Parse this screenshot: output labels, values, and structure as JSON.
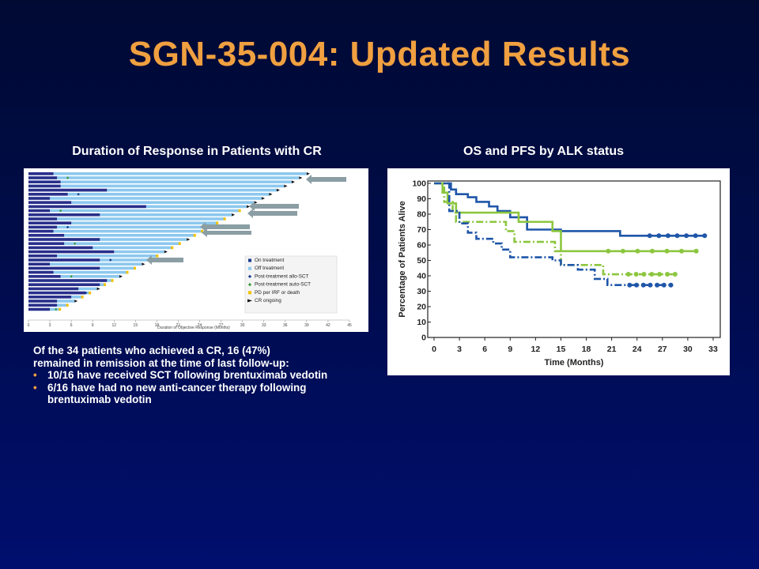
{
  "slide": {
    "title": "SGN-35-004: Updated Results",
    "left_heading": "Duration of Response in Patients with CR",
    "right_heading": "OS and PFS by ALK status",
    "summary": {
      "intro_line1": "Of the 34 patients who achieved a CR, 16 (47%)",
      "intro_line2": "remained in remission at the time of last follow-up:",
      "bullets": [
        {
          "line1": "10/16 have received SCT following brentuximab vedotin",
          "line2": ""
        },
        {
          "line1": "6/16 have had no new anti-cancer therapy following",
          "line2": "brentuximab vedotin"
        }
      ]
    },
    "accent_color": "#f0a040"
  },
  "swimmer": {
    "xlabel": "Duration of Objective Response (Months)",
    "x_ticks": [
      "0",
      "3",
      "6",
      "9",
      "12",
      "15",
      "18",
      "21",
      "24",
      "27",
      "30",
      "33",
      "36",
      "39",
      "42",
      "45"
    ],
    "legend": [
      {
        "label": "On treatment",
        "color": "#1a3a8c",
        "marker": "square"
      },
      {
        "label": "Off treatment",
        "color": "#8cc8ee",
        "marker": "square"
      },
      {
        "label": "Post-treatment  allo-SCT",
        "color": "#1a3a8c",
        "marker": "diamond"
      },
      {
        "label": "Post-treatment  auto-SCT",
        "color": "#3a9a3a",
        "marker": "diamond"
      },
      {
        "label": "PD per IRF or death",
        "color": "#f2c200",
        "marker": "square"
      },
      {
        "label": "CR ongoing",
        "color": "#111111",
        "marker": "arrow"
      }
    ]
  },
  "km": {
    "xlabel": "Time (Months)",
    "ylabel": "Percentage of Patients Alive",
    "x_ticks": [
      "0",
      "3",
      "6",
      "9",
      "12",
      "15",
      "18",
      "21",
      "24",
      "27",
      "30",
      "33"
    ],
    "y_ticks": [
      "0",
      "10",
      "20",
      "30",
      "40",
      "50",
      "60",
      "70",
      "80",
      "90",
      "100"
    ]
  },
  "chart_data": [
    {
      "type": "bar",
      "chart": "swimmer",
      "xlabel": "Duration of Objective Response (Months)",
      "xlim": [
        0,
        45
      ],
      "n_patients": 34
    },
    {
      "type": "line",
      "chart": "kaplan-meier",
      "xlabel": "Time (Months)",
      "ylabel": "Percentage of Patients Alive",
      "xlim": [
        0,
        33
      ],
      "ylim": [
        0,
        100
      ],
      "series": [
        {
          "color": "#1f56a8",
          "style": "solid",
          "x": [
            0,
            2,
            2.6,
            4,
            5,
            6.5,
            7.5,
            9,
            11,
            15,
            21,
            22,
            32
          ],
          "y": [
            100,
            96,
            93,
            91,
            88,
            85,
            82,
            78,
            70,
            69,
            69,
            66,
            66
          ]
        },
        {
          "color": "#8cc63f",
          "style": "solid",
          "x": [
            0,
            1,
            1.6,
            2.6,
            4,
            9,
            10,
            14,
            15,
            31
          ],
          "y": [
            100,
            94,
            87,
            81,
            81,
            81,
            75,
            69,
            56,
            56
          ]
        },
        {
          "color": "#8cc63f",
          "style": "dashdot",
          "x": [
            0,
            1.2,
            2.2,
            2.6,
            8.5,
            9.5,
            14.3,
            15,
            20,
            28.5
          ],
          "y": [
            100,
            88,
            81,
            75,
            69,
            62,
            56,
            47,
            41,
            41
          ]
        },
        {
          "color": "#1f56a8",
          "style": "dashdot",
          "x": [
            0,
            1.8,
            3,
            4,
            5,
            7,
            8,
            9,
            13,
            14,
            15,
            17,
            19,
            20.5,
            28
          ],
          "y": [
            100,
            82,
            74,
            68,
            64,
            61,
            57,
            52,
            52,
            50,
            47,
            44,
            38,
            34,
            34
          ]
        }
      ]
    }
  ]
}
